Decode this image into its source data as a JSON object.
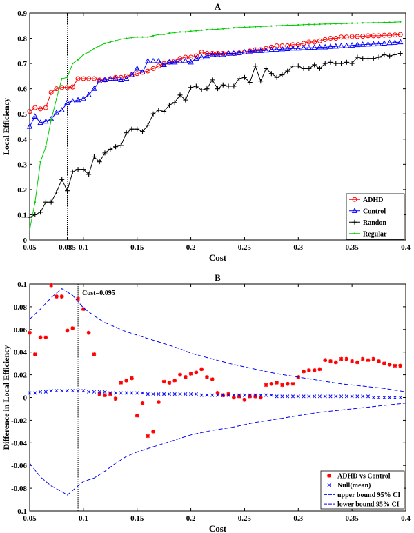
{
  "chart_data": [
    {
      "type": "line",
      "title": "A",
      "xlabel": "Cost",
      "ylabel": "Local Efficiency",
      "xlim": [
        0.05,
        0.4
      ],
      "ylim": [
        0,
        0.9
      ],
      "xticks": [
        0.05,
        0.085,
        0.1,
        0.15,
        0.2,
        0.25,
        0.3,
        0.35,
        0.4
      ],
      "xtick_labels": [
        "0.05",
        "0.085",
        "0.1",
        "0.15",
        "0.2",
        "0.25",
        "0.3",
        "0.35",
        "0.4"
      ],
      "yticks": [
        0,
        0.1,
        0.2,
        0.3,
        0.4,
        0.5,
        0.6,
        0.7,
        0.8,
        0.9
      ],
      "ytick_labels": [
        "0",
        "0.1",
        "0.2",
        "0.3",
        "0.4",
        "0.5",
        "0.6",
        "0.7",
        "0.8",
        "0.9"
      ],
      "vline_x": 0.085,
      "legend_position": "bottom-right",
      "x": [
        0.05,
        0.055,
        0.06,
        0.065,
        0.07,
        0.075,
        0.08,
        0.085,
        0.09,
        0.095,
        0.1,
        0.105,
        0.11,
        0.115,
        0.12,
        0.125,
        0.13,
        0.135,
        0.14,
        0.145,
        0.15,
        0.155,
        0.16,
        0.165,
        0.17,
        0.175,
        0.18,
        0.185,
        0.19,
        0.195,
        0.2,
        0.205,
        0.21,
        0.215,
        0.22,
        0.225,
        0.23,
        0.235,
        0.24,
        0.245,
        0.25,
        0.255,
        0.26,
        0.265,
        0.27,
        0.275,
        0.28,
        0.285,
        0.29,
        0.295,
        0.3,
        0.305,
        0.31,
        0.315,
        0.32,
        0.325,
        0.33,
        0.335,
        0.34,
        0.345,
        0.35,
        0.355,
        0.36,
        0.365,
        0.37,
        0.375,
        0.38,
        0.385,
        0.39,
        0.395
      ],
      "series": [
        {
          "name": "ADHD",
          "color": "#ff0000",
          "marker": "circle",
          "values": [
            0.51,
            0.525,
            0.52,
            0.525,
            0.585,
            0.6,
            0.605,
            0.605,
            0.607,
            0.64,
            0.64,
            0.64,
            0.64,
            0.635,
            0.635,
            0.64,
            0.645,
            0.645,
            0.65,
            0.655,
            0.66,
            0.665,
            0.67,
            0.68,
            0.69,
            0.7,
            0.705,
            0.71,
            0.72,
            0.725,
            0.725,
            0.73,
            0.745,
            0.74,
            0.74,
            0.74,
            0.74,
            0.74,
            0.74,
            0.742,
            0.745,
            0.75,
            0.755,
            0.755,
            0.76,
            0.765,
            0.77,
            0.77,
            0.77,
            0.775,
            0.775,
            0.78,
            0.785,
            0.785,
            0.79,
            0.795,
            0.8,
            0.8,
            0.805,
            0.805,
            0.807,
            0.807,
            0.808,
            0.81,
            0.81,
            0.81,
            0.812,
            0.812,
            0.813,
            0.815
          ]
        },
        {
          "name": "Control",
          "color": "#0000ff",
          "marker": "triangle",
          "values": [
            0.45,
            0.49,
            0.465,
            0.47,
            0.48,
            0.505,
            0.515,
            0.545,
            0.55,
            0.555,
            0.56,
            0.575,
            0.6,
            0.63,
            0.635,
            0.64,
            0.64,
            0.635,
            0.64,
            0.655,
            0.68,
            0.665,
            0.71,
            0.71,
            0.71,
            0.695,
            0.705,
            0.705,
            0.71,
            0.71,
            0.705,
            0.72,
            0.725,
            0.73,
            0.735,
            0.735,
            0.735,
            0.74,
            0.74,
            0.742,
            0.745,
            0.748,
            0.75,
            0.75,
            0.752,
            0.755,
            0.755,
            0.757,
            0.758,
            0.76,
            0.76,
            0.762,
            0.763,
            0.763,
            0.765,
            0.765,
            0.767,
            0.768,
            0.77,
            0.77,
            0.772,
            0.774,
            0.775,
            0.776,
            0.777,
            0.778,
            0.78,
            0.782,
            0.783,
            0.785
          ]
        },
        {
          "name": "Randon",
          "color": "#000000",
          "marker": "plus",
          "values": [
            0.09,
            0.1,
            0.11,
            0.15,
            0.15,
            0.19,
            0.24,
            0.195,
            0.27,
            0.28,
            0.28,
            0.26,
            0.33,
            0.31,
            0.345,
            0.36,
            0.37,
            0.375,
            0.425,
            0.44,
            0.44,
            0.43,
            0.455,
            0.5,
            0.515,
            0.51,
            0.535,
            0.545,
            0.575,
            0.555,
            0.605,
            0.61,
            0.595,
            0.6,
            0.635,
            0.6,
            0.615,
            0.61,
            0.61,
            0.64,
            0.645,
            0.625,
            0.69,
            0.63,
            0.68,
            0.66,
            0.645,
            0.655,
            0.67,
            0.69,
            0.69,
            0.68,
            0.68,
            0.695,
            0.68,
            0.7,
            0.705,
            0.7,
            0.7,
            0.705,
            0.7,
            0.725,
            0.72,
            0.72,
            0.72,
            0.725,
            0.735,
            0.73,
            0.735,
            0.74
          ]
        },
        {
          "name": "Regular",
          "color": "#00cc00",
          "marker": "dot",
          "values": [
            0.04,
            0.15,
            0.31,
            0.37,
            0.475,
            0.56,
            0.64,
            0.645,
            0.7,
            0.715,
            0.735,
            0.745,
            0.76,
            0.77,
            0.78,
            0.785,
            0.79,
            0.797,
            0.8,
            0.803,
            0.805,
            0.805,
            0.805,
            0.81,
            0.815,
            0.815,
            0.82,
            0.822,
            0.825,
            0.825,
            0.828,
            0.83,
            0.832,
            0.834,
            0.835,
            0.836,
            0.838,
            0.84,
            0.842,
            0.843,
            0.844,
            0.845,
            0.846,
            0.847,
            0.848,
            0.849,
            0.85,
            0.851,
            0.852,
            0.852,
            0.853,
            0.854,
            0.855,
            0.855,
            0.856,
            0.857,
            0.857,
            0.858,
            0.858,
            0.859,
            0.86,
            0.86,
            0.861,
            0.861,
            0.862,
            0.862,
            0.863,
            0.863,
            0.864,
            0.865
          ]
        }
      ]
    },
    {
      "type": "scatter",
      "title": "B",
      "xlabel": "Cost",
      "ylabel": "Difference in Local Efficiency",
      "xlim": [
        0.05,
        0.4
      ],
      "ylim": [
        -0.1,
        0.1
      ],
      "xticks": [
        0.05,
        0.1,
        0.15,
        0.2,
        0.25,
        0.3,
        0.35,
        0.4
      ],
      "xtick_labels": [
        "0.05",
        "0.1",
        "0.15",
        "0.2",
        "0.25",
        "0.3",
        "0.35",
        "0.4"
      ],
      "yticks": [
        -0.1,
        -0.08,
        -0.06,
        -0.04,
        -0.02,
        0,
        0.02,
        0.04,
        0.06,
        0.08,
        0.1
      ],
      "ytick_labels": [
        "-0.1",
        "-0.08",
        "-0.06",
        "-0.04",
        "-0.02",
        "0",
        "0.02",
        "0.04",
        "0.06",
        "0.08",
        "0.1"
      ],
      "vline_x": 0.095,
      "annotation": "Cost=0.095",
      "legend_position": "bottom-right",
      "x": [
        0.05,
        0.055,
        0.06,
        0.065,
        0.07,
        0.075,
        0.08,
        0.085,
        0.09,
        0.095,
        0.1,
        0.105,
        0.11,
        0.115,
        0.12,
        0.125,
        0.13,
        0.135,
        0.14,
        0.145,
        0.15,
        0.155,
        0.16,
        0.165,
        0.17,
        0.175,
        0.18,
        0.185,
        0.19,
        0.195,
        0.2,
        0.205,
        0.21,
        0.215,
        0.22,
        0.225,
        0.23,
        0.235,
        0.24,
        0.245,
        0.25,
        0.255,
        0.26,
        0.265,
        0.27,
        0.275,
        0.28,
        0.285,
        0.29,
        0.295,
        0.3,
        0.305,
        0.31,
        0.315,
        0.32,
        0.325,
        0.33,
        0.335,
        0.34,
        0.345,
        0.35,
        0.355,
        0.36,
        0.365,
        0.37,
        0.375,
        0.38,
        0.385,
        0.39,
        0.395
      ],
      "series": [
        {
          "name": "ADHD vs Control",
          "color": "#ff0000",
          "marker": "star",
          "values": [
            0.057,
            0.038,
            0.053,
            0.053,
            0.099,
            0.089,
            0.089,
            0.059,
            0.061,
            0.087,
            0.078,
            0.057,
            0.038,
            0.003,
            0.002,
            0.003,
            -0.001,
            0.013,
            0.015,
            0.017,
            -0.016,
            -0.005,
            -0.034,
            -0.03,
            -0.004,
            0.014,
            0.013,
            0.015,
            0.02,
            0.018,
            0.021,
            0.022,
            0.025,
            0.018,
            0.016,
            0.004,
            0.002,
            0.003,
            0.0,
            0.001,
            -0.002,
            0.001,
            0.001,
            0.0,
            0.011,
            0.012,
            0.013,
            0.011,
            0.012,
            0.012,
            0.018,
            0.023,
            0.024,
            0.024,
            0.025,
            0.033,
            0.032,
            0.031,
            0.034,
            0.034,
            0.032,
            0.031,
            0.034,
            0.033,
            0.034,
            0.032,
            0.03,
            0.029,
            0.028,
            0.028
          ]
        },
        {
          "name": "Null(mean)",
          "color": "#0000ff",
          "marker": "x",
          "values": [
            0.004,
            0.004,
            0.005,
            0.005,
            0.006,
            0.006,
            0.006,
            0.006,
            0.006,
            0.006,
            0.006,
            0.005,
            0.005,
            0.005,
            0.005,
            0.004,
            0.004,
            0.004,
            0.004,
            0.004,
            0.004,
            0.004,
            0.003,
            0.003,
            0.003,
            0.003,
            0.003,
            0.003,
            0.003,
            0.003,
            0.003,
            0.003,
            0.002,
            0.002,
            0.002,
            0.002,
            0.002,
            0.002,
            0.002,
            0.002,
            0.002,
            0.002,
            0.002,
            0.002,
            0.002,
            0.002,
            0.001,
            0.001,
            0.001,
            0.001,
            0.001,
            0.001,
            0.001,
            0.001,
            0.001,
            0.001,
            0.001,
            0.001,
            0.001,
            0.001,
            0.001,
            0.001,
            0.001,
            0.001,
            0.0,
            0.0,
            0.0,
            0.0,
            0.0,
            0.0
          ]
        },
        {
          "name": "upper bound 95% CI",
          "color": "#0000ff",
          "style": "dashed",
          "x": [
            0.05,
            0.06,
            0.07,
            0.08,
            0.09,
            0.1,
            0.11,
            0.12,
            0.13,
            0.14,
            0.15,
            0.16,
            0.17,
            0.18,
            0.19,
            0.2,
            0.22,
            0.24,
            0.26,
            0.28,
            0.3,
            0.32,
            0.34,
            0.36,
            0.38,
            0.4
          ],
          "values": [
            0.069,
            0.078,
            0.088,
            0.096,
            0.09,
            0.079,
            0.072,
            0.066,
            0.062,
            0.058,
            0.055,
            0.052,
            0.049,
            0.046,
            0.043,
            0.039,
            0.034,
            0.029,
            0.025,
            0.021,
            0.018,
            0.015,
            0.012,
            0.01,
            0.008,
            0.005
          ]
        },
        {
          "name": "lower bound 95% CI",
          "color": "#0000ff",
          "style": "dashed",
          "x": [
            0.05,
            0.06,
            0.07,
            0.08,
            0.085,
            0.09,
            0.1,
            0.11,
            0.12,
            0.13,
            0.14,
            0.15,
            0.16,
            0.17,
            0.18,
            0.19,
            0.2,
            0.22,
            0.24,
            0.26,
            0.28,
            0.3,
            0.32,
            0.34,
            0.36,
            0.38,
            0.4
          ],
          "values": [
            -0.058,
            -0.07,
            -0.078,
            -0.083,
            -0.086,
            -0.082,
            -0.074,
            -0.071,
            -0.065,
            -0.058,
            -0.052,
            -0.048,
            -0.045,
            -0.042,
            -0.039,
            -0.036,
            -0.033,
            -0.029,
            -0.026,
            -0.022,
            -0.019,
            -0.016,
            -0.013,
            -0.011,
            -0.009,
            -0.007,
            -0.005
          ]
        }
      ]
    }
  ]
}
